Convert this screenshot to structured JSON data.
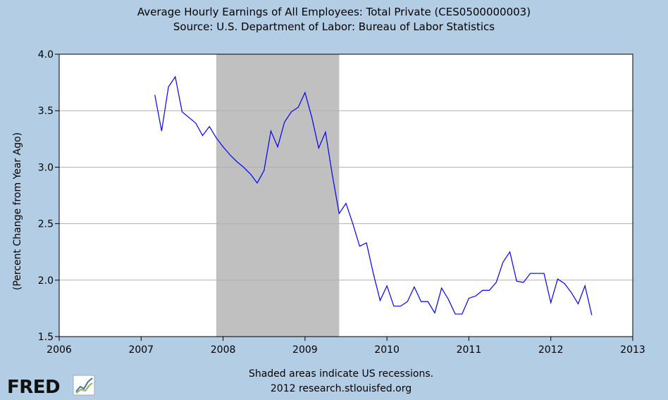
{
  "chart_data": {
    "type": "line",
    "title": "Average Hourly Earnings of All Employees: Total Private (CES0500000003)",
    "subtitle": "Source: U.S. Department of Labor: Bureau of Labor Statistics",
    "xlabel": "",
    "ylabel": "(Percent Change from Year Ago)",
    "xlim": [
      2006,
      2013
    ],
    "ylim": [
      1.5,
      4.0
    ],
    "x_ticks": [
      "2006",
      "2007",
      "2008",
      "2009",
      "2010",
      "2011",
      "2012",
      "2013"
    ],
    "y_ticks": [
      "1.5",
      "2.0",
      "2.5",
      "3.0",
      "3.5",
      "4.0"
    ],
    "grid": true,
    "line_color": "#0000ff",
    "recession_color": "#c0c0c0",
    "recessions": [
      {
        "start": "2007-12",
        "end": "2009-06"
      }
    ],
    "series": [
      {
        "x": [
          "2007-03",
          "2007-04",
          "2007-05",
          "2007-06",
          "2007-07",
          "2007-08",
          "2007-09",
          "2007-10",
          "2007-11",
          "2007-12",
          "2008-01",
          "2008-02",
          "2008-03",
          "2008-04",
          "2008-05",
          "2008-06",
          "2008-07",
          "2008-08",
          "2008-09",
          "2008-10",
          "2008-11",
          "2008-12",
          "2009-01",
          "2009-02",
          "2009-03",
          "2009-04",
          "2009-05",
          "2009-06",
          "2009-07",
          "2009-08",
          "2009-09",
          "2009-10",
          "2009-11",
          "2009-12",
          "2010-01",
          "2010-02",
          "2010-03",
          "2010-04",
          "2010-05",
          "2010-06",
          "2010-07",
          "2010-08",
          "2010-09",
          "2010-10",
          "2010-11",
          "2010-12",
          "2011-01",
          "2011-02",
          "2011-03",
          "2011-04",
          "2011-05",
          "2011-06",
          "2011-07",
          "2011-08",
          "2011-09",
          "2011-10",
          "2011-11",
          "2011-12",
          "2012-01",
          "2012-02",
          "2012-03",
          "2012-04",
          "2012-05",
          "2012-06",
          "2012-07"
        ],
        "values": [
          3.64,
          3.32,
          3.71,
          3.8,
          3.49,
          3.44,
          3.39,
          3.28,
          3.36,
          3.26,
          3.18,
          3.11,
          3.05,
          3.0,
          2.94,
          2.86,
          2.97,
          3.32,
          3.18,
          3.4,
          3.49,
          3.53,
          3.66,
          3.44,
          3.17,
          3.31,
          2.93,
          2.59,
          2.68,
          2.5,
          2.3,
          2.33,
          2.06,
          1.82,
          1.95,
          1.77,
          1.77,
          1.81,
          1.94,
          1.81,
          1.81,
          1.71,
          1.93,
          1.83,
          1.7,
          1.7,
          1.84,
          1.86,
          1.91,
          1.91,
          1.98,
          2.16,
          2.25,
          1.99,
          1.98,
          2.06,
          2.06,
          2.06,
          1.8,
          2.01,
          1.97,
          1.89,
          1.79,
          1.95,
          1.69
        ]
      }
    ]
  },
  "footer": {
    "note": "Shaded areas indicate US recessions.",
    "credit": "2012 research.stlouisfed.org",
    "logo_text": "FRED"
  }
}
